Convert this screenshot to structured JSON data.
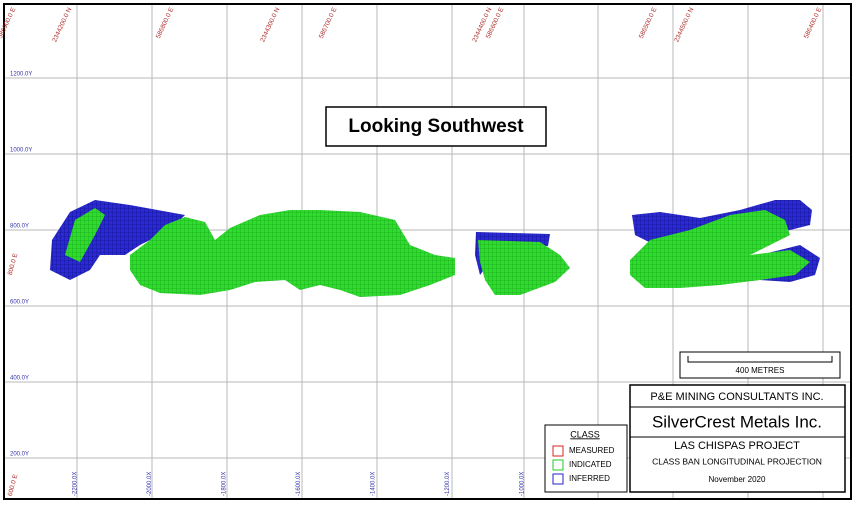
{
  "view": {
    "title": "Looking Southwest"
  },
  "grid": {
    "elevation_labels": [
      "1200.0Y",
      "1000.0Y",
      "800.0Y",
      "600.0Y",
      "400.0Y",
      "200.0Y"
    ],
    "top_labels": [
      "586900.0 E",
      "2344200.0 N",
      "586800.0 E",
      "2344300.0 N",
      "586700.0 E",
      "2344400.0 N",
      "586600.0 E",
      "586500.0 E",
      "2344500.0 N",
      "586400.0 E"
    ],
    "section_labels": [
      "-2200.0X",
      "-2000.0X",
      "-1800.0X",
      "-1600.0X",
      "-1400.0X",
      "-1200.0X",
      "-1000.0X"
    ],
    "side_labels": [
      "800.0 E",
      "600.0 E"
    ]
  },
  "scale": {
    "label": "400 METRES"
  },
  "legend": {
    "title": "CLASS",
    "items": [
      "MEASURED",
      "INDICATED",
      "INFERRED"
    ]
  },
  "title_block": {
    "consultant": "P&E MINING CONSULTANTS INC.",
    "client": "SilverCrest Metals Inc.",
    "project": "LAS CHISPAS PROJECT",
    "drawing": "CLASS BAN LONGITUDINAL PROJECTION",
    "date": "November 2020"
  }
}
